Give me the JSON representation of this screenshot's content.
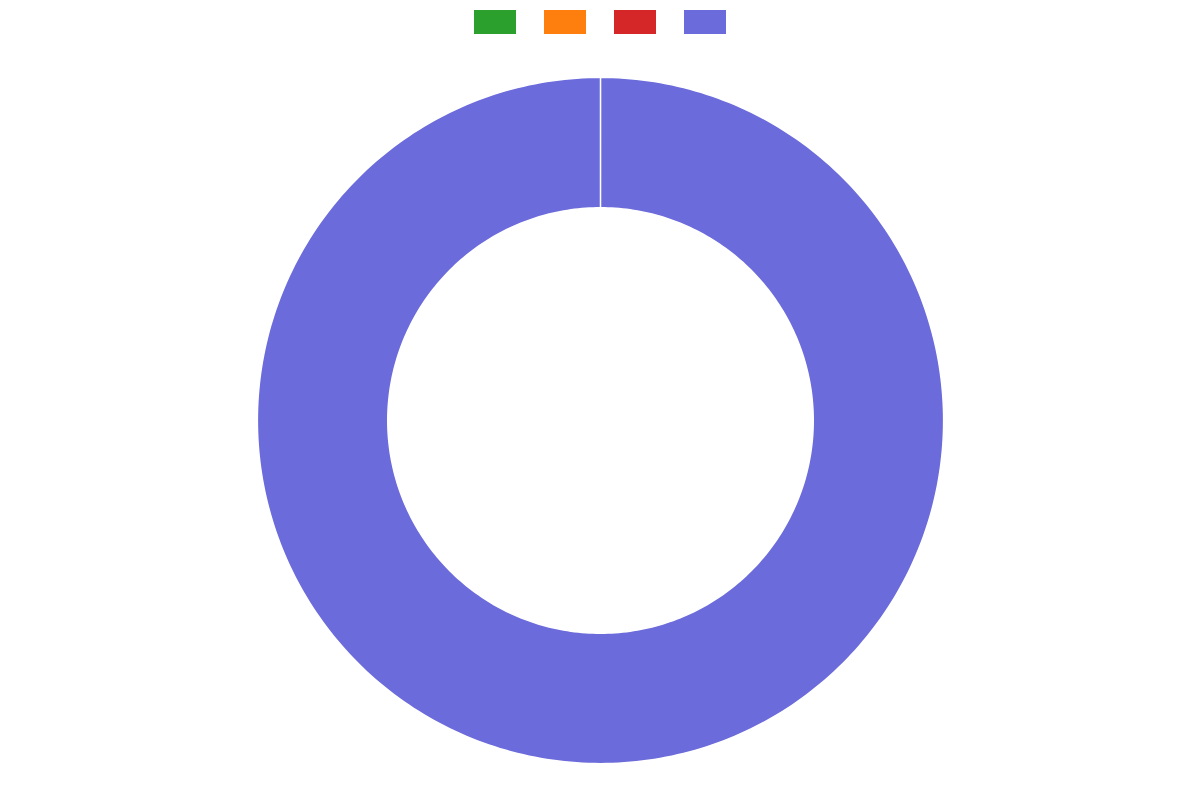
{
  "chart_data": {
    "type": "donut",
    "values": [
      0.001,
      0.001,
      0.001,
      99.997
    ],
    "colors": [
      "#2ca02c",
      "#ff7f0e",
      "#d62728",
      "#6b6bdb"
    ],
    "legend": "top"
  }
}
